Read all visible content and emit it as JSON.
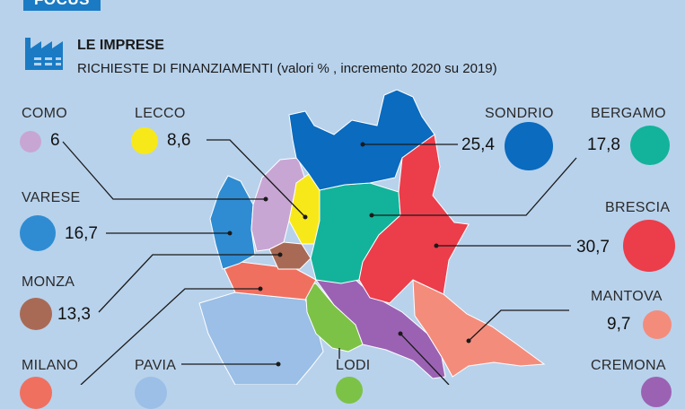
{
  "header": {
    "tag": "FOCUS",
    "title": "LE IMPRESE",
    "subtitle": "RICHIESTE DI FINANZIAMENTI (valori % , incremento 2020 su 2019)"
  },
  "provinces": {
    "como": {
      "name": "COMO",
      "value": "6",
      "color": "#c8a6d4"
    },
    "lecco": {
      "name": "LECCO",
      "value": "8,6",
      "color": "#f7e81a"
    },
    "varese": {
      "name": "VARESE",
      "value": "16,7",
      "color": "#2f8cd2"
    },
    "monza": {
      "name": "MONZA",
      "value": "13,3",
      "color": "#a96a55"
    },
    "milano": {
      "name": "MILANO",
      "value": "",
      "color": "#f07060"
    },
    "pavia": {
      "name": "PAVIA",
      "value": "",
      "color": "#9bbfe6"
    },
    "lodi": {
      "name": "LODI",
      "value": "",
      "color": "#7cc247"
    },
    "sondrio": {
      "name": "SONDRIO",
      "value": "25,4",
      "color": "#0a6bbf"
    },
    "bergamo": {
      "name": "BERGAMO",
      "value": "17,8",
      "color": "#12b39a"
    },
    "brescia": {
      "name": "BRESCIA",
      "value": "30,7",
      "color": "#ec3d4b"
    },
    "mantova": {
      "name": "MANTOVA",
      "value": "9,7",
      "color": "#f48c7c"
    },
    "cremona": {
      "name": "CREMONA",
      "value": "",
      "color": "#9b62b4"
    }
  }
}
